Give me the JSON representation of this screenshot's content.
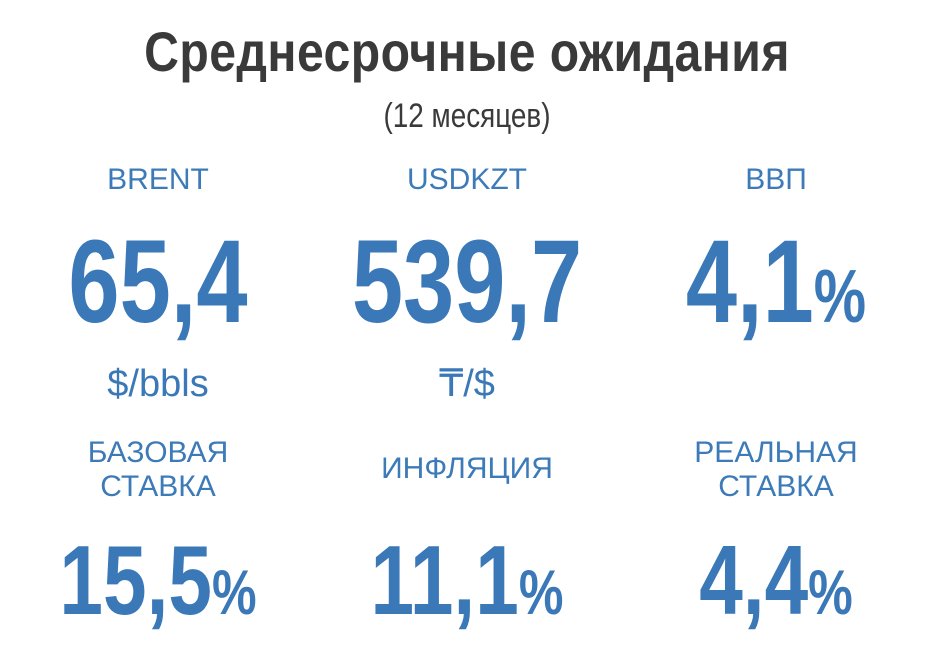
{
  "header": {
    "title": "Среднесрочные ожидания",
    "subtitle": "(12 месяцев)"
  },
  "colors": {
    "title": "#3a3a3a",
    "accent": "#3a78b8"
  },
  "top_row": [
    {
      "label": "BRENT",
      "value": "65,4",
      "suffix": "",
      "unit": "$/bbls"
    },
    {
      "label": "USDKZT",
      "value": "539,7",
      "suffix": "",
      "unit": "₸/$"
    },
    {
      "label": "ВВП",
      "value": "4,1",
      "suffix": "%",
      "unit": ""
    }
  ],
  "bottom_row": [
    {
      "label_line1": "БАЗОВАЯ",
      "label_line2": "СТАВКА",
      "value": "15,5",
      "suffix": "%"
    },
    {
      "label_line1": "ИНФЛЯЦИЯ",
      "label_line2": "",
      "value": "11,1",
      "suffix": "%"
    },
    {
      "label_line1": "РЕАЛЬНАЯ",
      "label_line2": "СТАВКА",
      "value": "4,4",
      "suffix": "%"
    }
  ]
}
